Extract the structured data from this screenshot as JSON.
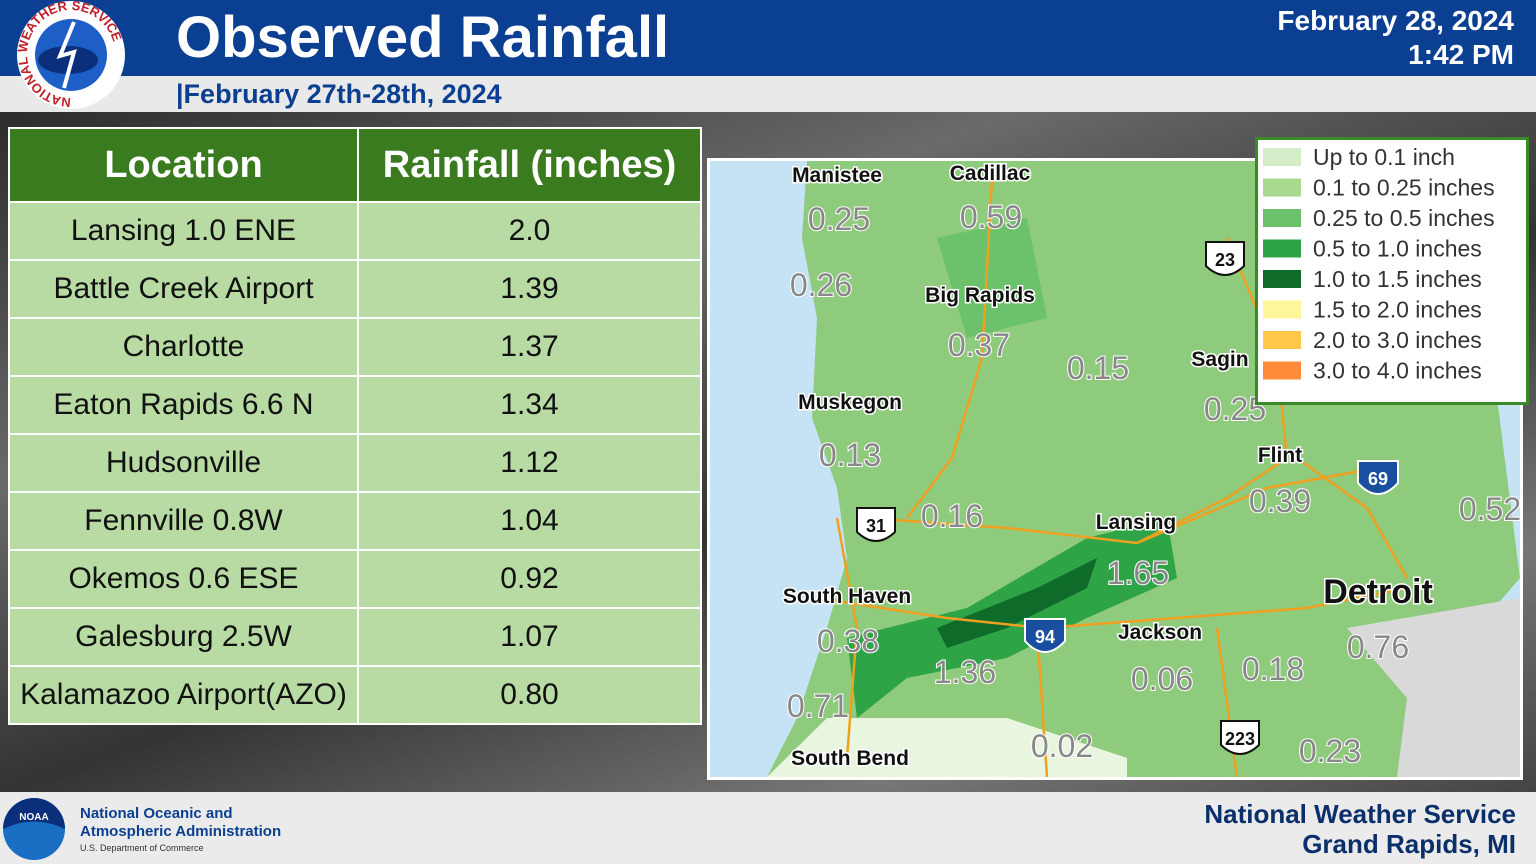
{
  "header": {
    "logo_text": "NATIONAL WEATHER SERVICE",
    "title": "Observed Rainfall",
    "subtitle": "|February 27th-28th, 2024",
    "date": "February 28, 2024",
    "time": "1:42 PM"
  },
  "table": {
    "headers": [
      "Location",
      "Rainfall (inches)"
    ],
    "rows": [
      [
        "Lansing 1.0 ENE",
        "2.0"
      ],
      [
        "Battle Creek Airport",
        "1.39"
      ],
      [
        "Charlotte",
        "1.37"
      ],
      [
        "Eaton Rapids 6.6 N",
        "1.34"
      ],
      [
        "Hudsonville",
        "1.12"
      ],
      [
        "Fennville 0.8W",
        "1.04"
      ],
      [
        "Okemos 0.6 ESE",
        "0.92"
      ],
      [
        "Galesburg 2.5W",
        "1.07"
      ],
      [
        "Kalamazoo Airport(AZO)",
        "0.80"
      ]
    ]
  },
  "legend": [
    {
      "label": "Up to 0.1 inch",
      "color": "#d4ecc8"
    },
    {
      "label": "0.1 to 0.25 inches",
      "color": "#a9d98f"
    },
    {
      "label": "0.25 to 0.5 inches",
      "color": "#6cc26a"
    },
    {
      "label": "0.5 to 1.0 inches",
      "color": "#2fa447"
    },
    {
      "label": "1.0 to 1.5 inches",
      "color": "#0f6b2a"
    },
    {
      "label": "1.5 to 2.0 inches",
      "color": "#fff59a"
    },
    {
      "label": "2.0 to 3.0 inches",
      "color": "#ffc84a"
    },
    {
      "label": "3.0 to 4.0 inches",
      "color": "#ff8c3a"
    }
  ],
  "map": {
    "labels": [
      "Manistee",
      "Cadillac",
      "0.25",
      "0.59",
      "0.26",
      "Big Rapids",
      "0.37",
      "0.15",
      "Sagin",
      "Muskegon",
      "0.25",
      "0.13",
      "Flint",
      "0.39",
      "0.52",
      "0.16",
      "Lansing",
      "1.65",
      "Detroit",
      "South Haven",
      "Jackson",
      "0.38",
      "0.76",
      "1.36",
      "0.06",
      "0.18",
      "0.71",
      "South Bend",
      "0.02",
      "0.23"
    ],
    "shields": [
      "23",
      "69",
      "31",
      "94",
      "223"
    ]
  },
  "footer": {
    "noaa_abbr": "NOAA",
    "agency": "National Oceanic and Atmospheric Administration",
    "department": "U.S. Department of Commerce",
    "office": "National Weather Service",
    "location": "Grand Rapids, MI"
  }
}
